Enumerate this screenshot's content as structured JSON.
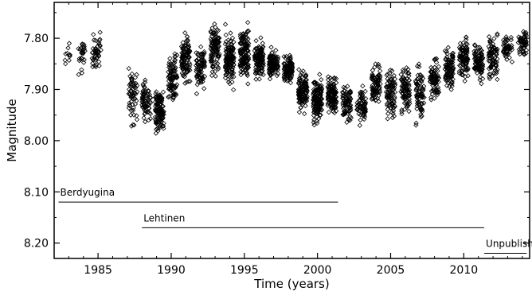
{
  "chart_data": {
    "type": "scatter",
    "title": "",
    "xlabel": "Time  (years)",
    "ylabel": "Magnitude",
    "xlim": [
      1982.0,
      2014.5
    ],
    "ylim": [
      8.23,
      7.73
    ],
    "y_inverted": true,
    "grid": false,
    "xticks": [
      1985,
      1990,
      1995,
      2000,
      2005,
      2010
    ],
    "xtick_labels": [
      "1985",
      "1990",
      "1995",
      "2000",
      "2005",
      "2010"
    ],
    "yticks": [
      7.8,
      7.9,
      8.0,
      8.1,
      8.2
    ],
    "ytick_labels": [
      "7.80",
      "7.90",
      "8.00",
      "8.10",
      "8.20"
    ],
    "marker": "open-diamond",
    "seasons": [
      {
        "x": 1983.0,
        "mean": 7.83,
        "spread": 0.02,
        "n": 10
      },
      {
        "x": 1983.9,
        "mean": 7.83,
        "spread": 0.025,
        "n": 28
      },
      {
        "x": 1984.9,
        "mean": 7.83,
        "spread": 0.03,
        "n": 48
      },
      {
        "x": 1987.4,
        "mean": 7.91,
        "spread": 0.045,
        "n": 60
      },
      {
        "x": 1988.3,
        "mean": 7.92,
        "spread": 0.035,
        "n": 70
      },
      {
        "x": 1989.2,
        "mean": 7.94,
        "spread": 0.035,
        "n": 120
      },
      {
        "x": 1990.1,
        "mean": 7.88,
        "spread": 0.04,
        "n": 90
      },
      {
        "x": 1991.0,
        "mean": 7.84,
        "spread": 0.04,
        "n": 100
      },
      {
        "x": 1992.0,
        "mean": 7.86,
        "spread": 0.035,
        "n": 80
      },
      {
        "x": 1993.0,
        "mean": 7.82,
        "spread": 0.04,
        "n": 110
      },
      {
        "x": 1994.0,
        "mean": 7.84,
        "spread": 0.04,
        "n": 130
      },
      {
        "x": 1995.0,
        "mean": 7.83,
        "spread": 0.045,
        "n": 140
      },
      {
        "x": 1996.0,
        "mean": 7.84,
        "spread": 0.03,
        "n": 120
      },
      {
        "x": 1997.0,
        "mean": 7.85,
        "spread": 0.02,
        "n": 110
      },
      {
        "x": 1998.0,
        "mean": 7.86,
        "spread": 0.02,
        "n": 110
      },
      {
        "x": 1999.0,
        "mean": 7.9,
        "spread": 0.03,
        "n": 120
      },
      {
        "x": 2000.0,
        "mean": 7.92,
        "spread": 0.035,
        "n": 140
      },
      {
        "x": 2001.0,
        "mean": 7.91,
        "spread": 0.03,
        "n": 120
      },
      {
        "x": 2002.0,
        "mean": 7.93,
        "spread": 0.03,
        "n": 80
      },
      {
        "x": 2003.0,
        "mean": 7.93,
        "spread": 0.03,
        "n": 70
      },
      {
        "x": 2004.0,
        "mean": 7.89,
        "spread": 0.03,
        "n": 80
      },
      {
        "x": 2005.0,
        "mean": 7.91,
        "spread": 0.04,
        "n": 90
      },
      {
        "x": 2006.0,
        "mean": 7.9,
        "spread": 0.04,
        "n": 90
      },
      {
        "x": 2007.0,
        "mean": 7.91,
        "spread": 0.045,
        "n": 80
      },
      {
        "x": 2008.0,
        "mean": 7.88,
        "spread": 0.035,
        "n": 90
      },
      {
        "x": 2009.0,
        "mean": 7.86,
        "spread": 0.03,
        "n": 90
      },
      {
        "x": 2010.0,
        "mean": 7.84,
        "spread": 0.03,
        "n": 100
      },
      {
        "x": 2011.0,
        "mean": 7.85,
        "spread": 0.03,
        "n": 90
      },
      {
        "x": 2012.0,
        "mean": 7.84,
        "spread": 0.035,
        "n": 80
      },
      {
        "x": 2013.0,
        "mean": 7.82,
        "spread": 0.02,
        "n": 50
      },
      {
        "x": 2014.0,
        "mean": 7.81,
        "spread": 0.02,
        "n": 50
      }
    ],
    "annotations": [
      {
        "label": "Berdyugina",
        "x_start": 1982.3,
        "x_end": 2001.4,
        "y": 8.12
      },
      {
        "label": "Lehtinen",
        "x_start": 1988.0,
        "x_end": 2011.4,
        "y": 8.17
      },
      {
        "label": "Unpublished",
        "x_start": 2011.4,
        "x_end": 2014.3,
        "y": 8.22
      }
    ]
  }
}
